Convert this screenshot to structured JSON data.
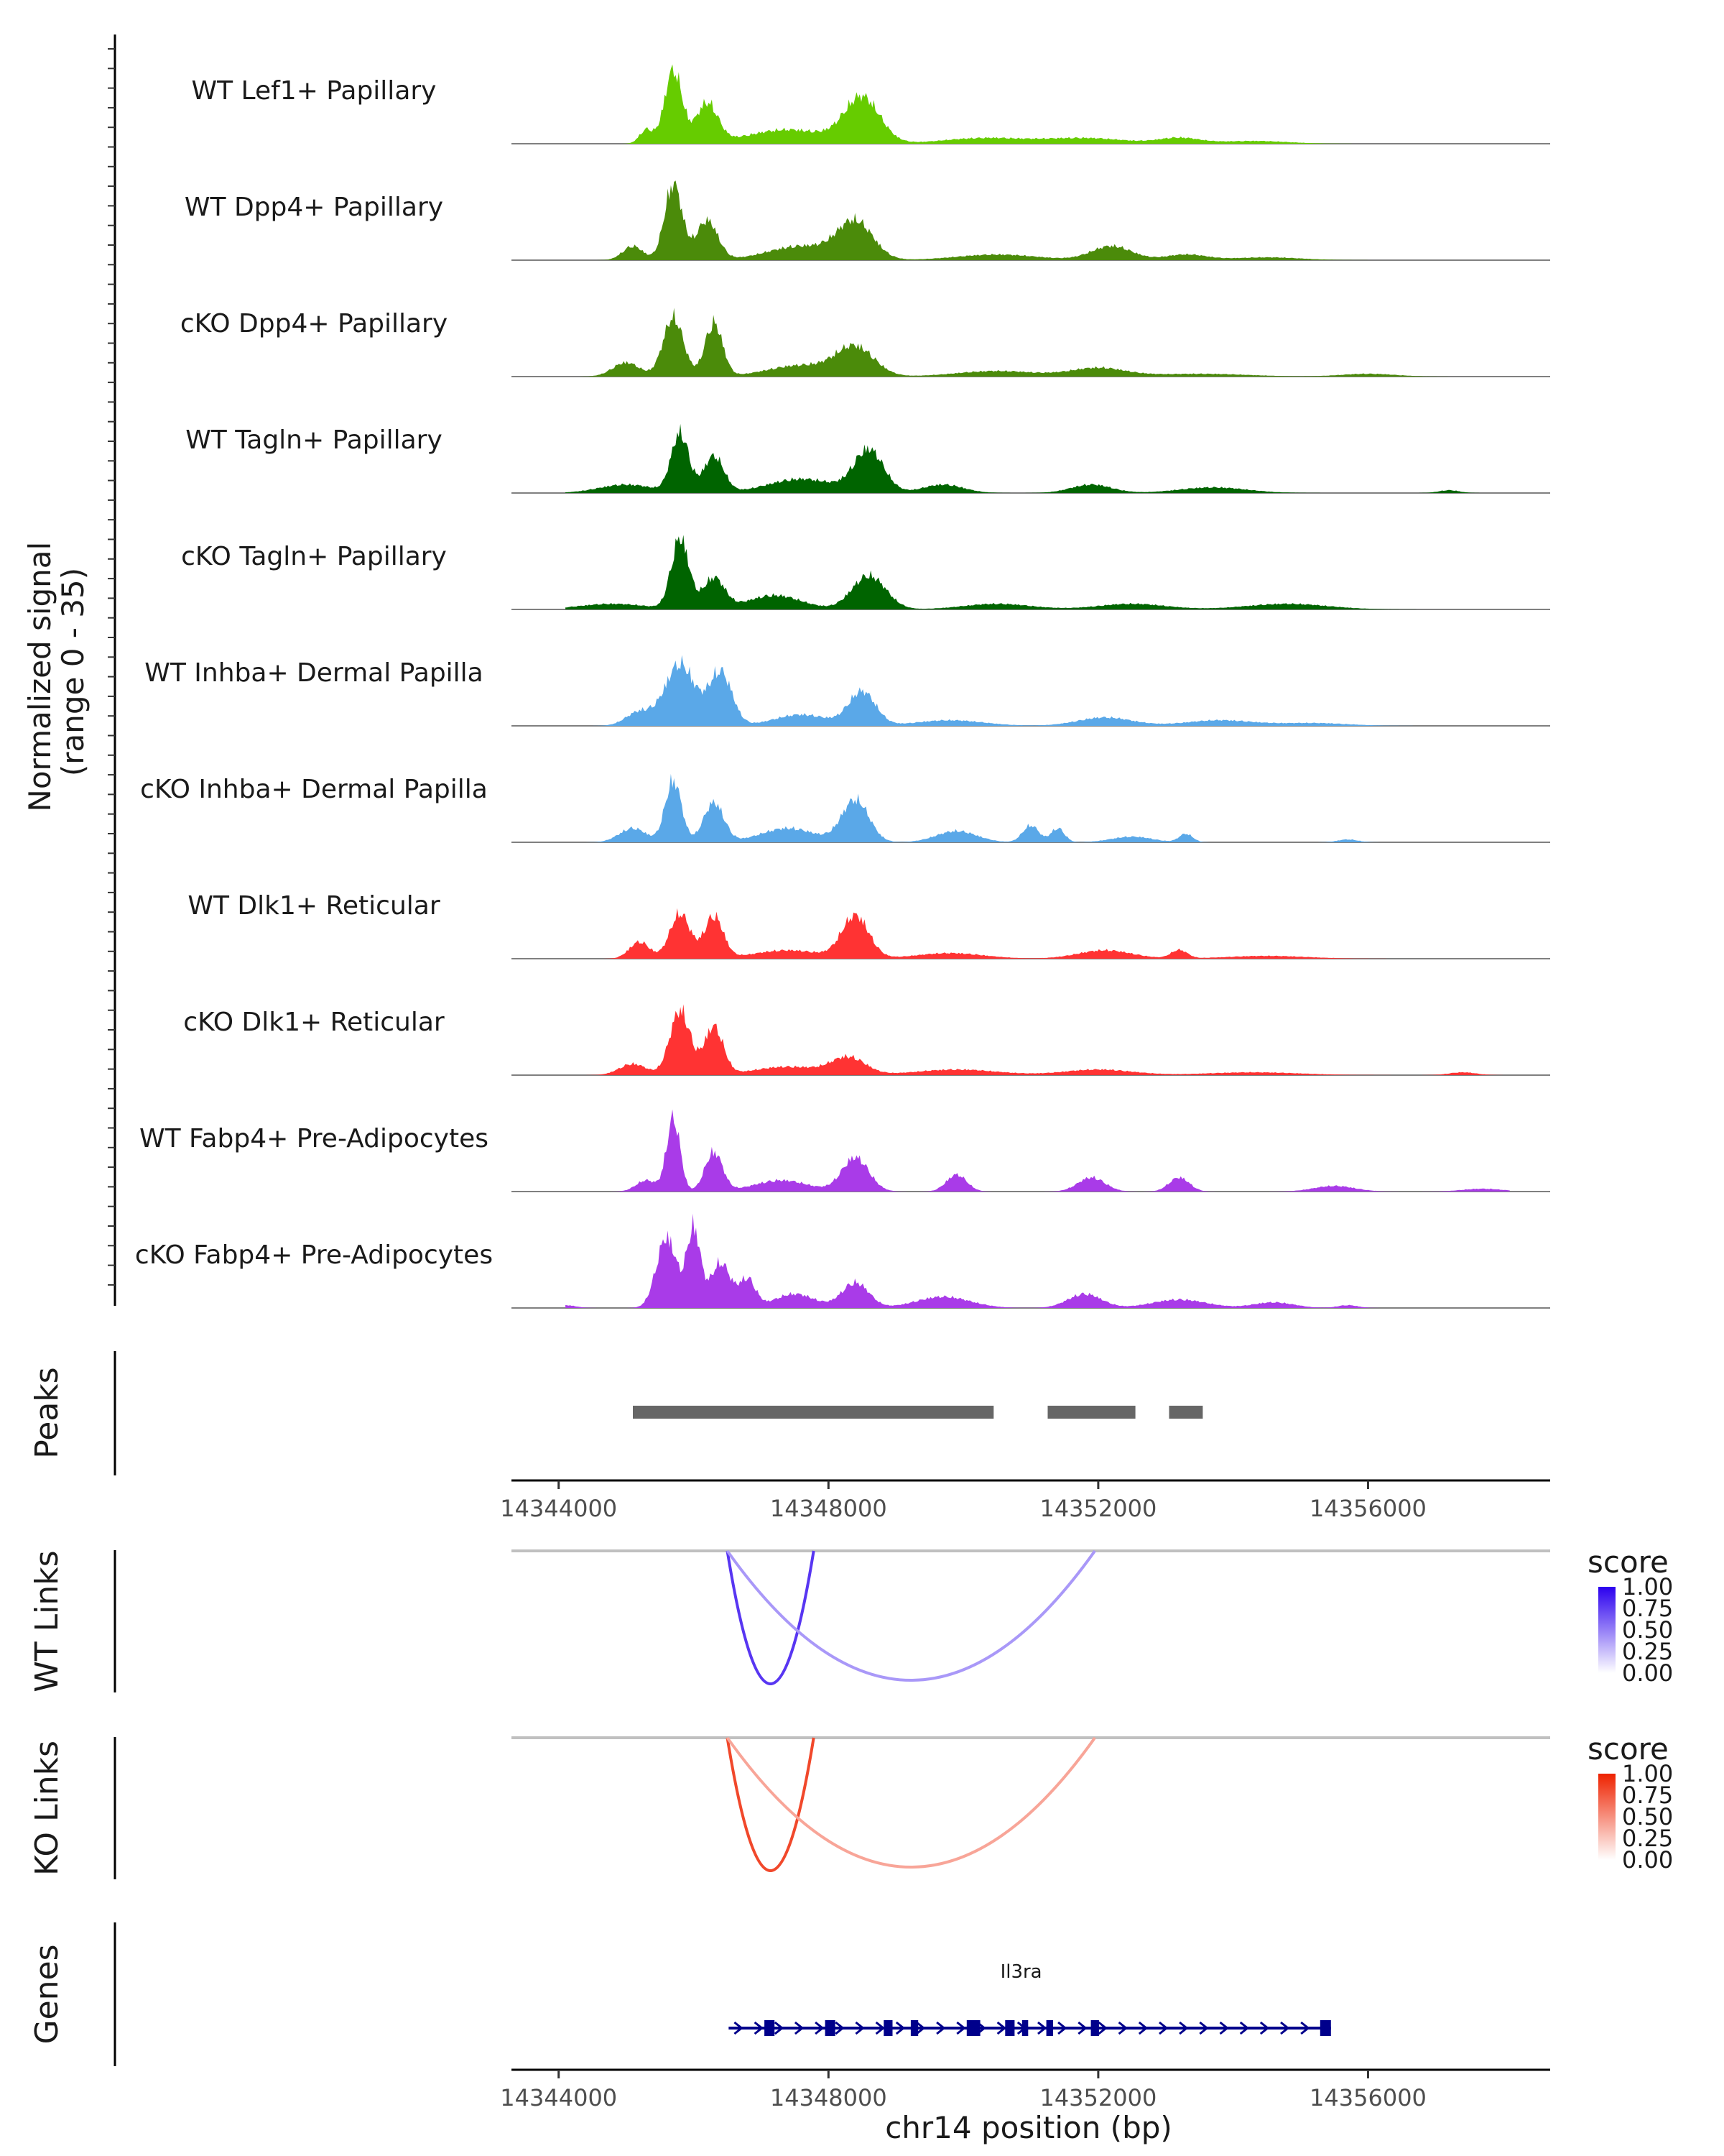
{
  "chart_data": {
    "type": "area",
    "title": "",
    "region": {
      "chrom": "chr14",
      "start": 14343300,
      "end": 14358700
    },
    "coverage": {
      "ylabel_line1": "Normalized signal",
      "ylabel_line2": "(range 0 - 35)",
      "ylim": [
        0,
        35
      ],
      "tracks": [
        {
          "name": "WT Lef1+ Papillary",
          "color": "#66cc00",
          "peaks": [
            [
              14345700,
              26,
              130
            ],
            [
              14346200,
              14,
              160
            ],
            [
              14348500,
              16,
              260
            ],
            [
              14345300,
              5,
              100
            ],
            [
              14347400,
              5,
              600
            ],
            [
              14350300,
              2,
              600
            ],
            [
              14351800,
              2,
              600
            ],
            [
              14353200,
              2,
              300
            ],
            [
              14354300,
              1,
              500
            ]
          ]
        },
        {
          "name": "WT Dpp4+ Papillary",
          "color": "#4b8b0a",
          "peaks": [
            [
              14345700,
              27,
              130
            ],
            [
              14346200,
              14,
              160
            ],
            [
              14348400,
              13,
              260
            ],
            [
              14345100,
              5,
              150
            ],
            [
              14347600,
              5,
              500
            ],
            [
              14350500,
              2,
              600
            ],
            [
              14352200,
              5,
              300
            ],
            [
              14353300,
              2,
              300
            ],
            [
              14354500,
              1,
              500
            ]
          ]
        },
        {
          "name": "cKO Dpp4+ Papillary",
          "color": "#4b8b0a",
          "peaks": [
            [
              14345700,
              21,
              150
            ],
            [
              14346300,
              19,
              130
            ],
            [
              14348400,
              10,
              280
            ],
            [
              14345000,
              5,
              200
            ],
            [
              14347600,
              4,
              500
            ],
            [
              14350500,
              2,
              600
            ],
            [
              14352000,
              3,
              400
            ],
            [
              14353500,
              1,
              700
            ],
            [
              14356000,
              1,
              400
            ]
          ]
        },
        {
          "name": "WT Tagln+ Papillary",
          "color": "#006400",
          "peaks": [
            [
              14345800,
              21,
              130
            ],
            [
              14346300,
              13,
              150
            ],
            [
              14348600,
              15,
              220
            ],
            [
              14347600,
              5,
              500
            ],
            [
              14345000,
              3,
              400
            ],
            [
              14349700,
              3,
              300
            ],
            [
              14351900,
              3,
              300
            ],
            [
              14353700,
              2,
              500
            ],
            [
              14357200,
              1,
              150
            ]
          ]
        },
        {
          "name": "cKO Tagln+ Papillary",
          "color": "#006400",
          "peaks": [
            [
              14345800,
              25,
              130
            ],
            [
              14346300,
              11,
              160
            ],
            [
              14348600,
              12,
              250
            ],
            [
              14347200,
              5,
              400
            ],
            [
              14344800,
              2,
              500
            ],
            [
              14350500,
              2,
              500
            ],
            [
              14352500,
              2,
              500
            ],
            [
              14354800,
              2,
              600
            ]
          ]
        },
        {
          "name": "WT Inhba+ Dermal Papilla",
          "color": "#5aa8e8",
          "peaks": [
            [
              14345800,
              22,
              220
            ],
            [
              14346400,
              19,
              170
            ],
            [
              14348500,
              12,
              200
            ],
            [
              14347600,
              4,
              400
            ],
            [
              14345200,
              5,
              200
            ],
            [
              14349800,
              2,
              500
            ],
            [
              14352100,
              3,
              400
            ],
            [
              14353800,
              2,
              500
            ],
            [
              14355200,
              1,
              500
            ]
          ]
        },
        {
          "name": "cKO Inhba+ Dermal Papilla",
          "color": "#5aa8e8",
          "peaks": [
            [
              14345700,
              22,
              120
            ],
            [
              14346300,
              14,
              150
            ],
            [
              14348400,
              15,
              200
            ],
            [
              14347400,
              5,
              400
            ],
            [
              14345100,
              5,
              200
            ],
            [
              14349900,
              4,
              300
            ],
            [
              14351000,
              6,
              120
            ],
            [
              14351400,
              5,
              100
            ],
            [
              14352500,
              2,
              300
            ],
            [
              14353300,
              3,
              100
            ],
            [
              14355700,
              1,
              150
            ]
          ]
        },
        {
          "name": "WT Dlk1+ Reticular",
          "color": "#ff3333",
          "peaks": [
            [
              14345800,
              16,
              150
            ],
            [
              14346300,
              15,
              140
            ],
            [
              14348400,
              15,
              200
            ],
            [
              14345200,
              6,
              150
            ],
            [
              14347400,
              3,
              500
            ],
            [
              14349800,
              2,
              500
            ],
            [
              14352100,
              3,
              400
            ],
            [
              14353200,
              3,
              120
            ],
            [
              14354500,
              1,
              600
            ]
          ]
        },
        {
          "name": "cKO Dlk1+ Reticular",
          "color": "#ff3333",
          "peaks": [
            [
              14345800,
              23,
              150
            ],
            [
              14346300,
              17,
              140
            ],
            [
              14348300,
              6,
              250
            ],
            [
              14347400,
              3,
              500
            ],
            [
              14345100,
              4,
              200
            ],
            [
              14349900,
              2,
              600
            ],
            [
              14352000,
              2,
              500
            ],
            [
              14354300,
              1,
              700
            ],
            [
              14357400,
              1,
              200
            ]
          ]
        },
        {
          "name": "WT Fabp4+ Pre-Adipocytes",
          "color": "#a93be8",
          "peaks": [
            [
              14345700,
              26,
              100
            ],
            [
              14346300,
              14,
              130
            ],
            [
              14348400,
              12,
              200
            ],
            [
              14345300,
              4,
              150
            ],
            [
              14347300,
              4,
              400
            ],
            [
              14349900,
              6,
              150
            ],
            [
              14351900,
              5,
              200
            ],
            [
              14353200,
              5,
              150
            ],
            [
              14355500,
              2,
              300
            ],
            [
              14357700,
              1,
              300
            ]
          ]
        },
        {
          "name": "cKO Fabp4+ Pre-Adipocytes",
          "color": "#a93be8",
          "peaks": [
            [
              14345600,
              25,
              150
            ],
            [
              14346000,
              28,
              100
            ],
            [
              14346400,
              16,
              150
            ],
            [
              14346800,
              10,
              120
            ],
            [
              14348400,
              9,
              200
            ],
            [
              14347500,
              5,
              300
            ],
            [
              14349700,
              4,
              400
            ],
            [
              14351800,
              5,
              250
            ],
            [
              14353200,
              3,
              400
            ],
            [
              14354600,
              2,
              300
            ],
            [
              14355700,
              1,
              150
            ],
            [
              14344100,
              1,
              150
            ]
          ]
        }
      ]
    },
    "peaks_track": {
      "label": "Peaks",
      "regions": [
        [
          14345100,
          14350450
        ],
        [
          14351250,
          14352550
        ],
        [
          14353050,
          14353550
        ]
      ]
    },
    "x_axis": {
      "ticks": [
        14344000,
        14348000,
        14352000,
        14356000
      ],
      "tick_labels": [
        "14344000",
        "14348000",
        "14352000",
        "14356000"
      ],
      "xlabel": "chr14 position (bp)"
    },
    "links": [
      {
        "label": "WT Links",
        "colorscale": [
          "#ffffff",
          "#2b00ee"
        ],
        "legend_title": "score",
        "legend_ticks": [
          "1.00",
          "0.75",
          "0.50",
          "0.25",
          "0.00"
        ],
        "arcs": [
          {
            "start": 14346500,
            "end": 14347780,
            "score": 0.75
          },
          {
            "start": 14346500,
            "end": 14351950,
            "score": 0.3
          }
        ]
      },
      {
        "label": "KO Links",
        "colorscale": [
          "#ffffff",
          "#ee2200"
        ],
        "legend_title": "score",
        "legend_ticks": [
          "1.00",
          "0.75",
          "0.50",
          "0.25",
          "0.00"
        ],
        "arcs": [
          {
            "start": 14346500,
            "end": 14347780,
            "score": 0.8
          },
          {
            "start": 14346500,
            "end": 14351950,
            "score": 0.3
          }
        ]
      }
    ],
    "genes": {
      "label": "Genes",
      "items": [
        {
          "name": "Il3ra",
          "start": 14346520,
          "end": 14355450,
          "strand": "+",
          "color": "#00008b",
          "exons": [
            [
              14347050,
              14347200
            ],
            [
              14347950,
              14348100
            ],
            [
              14348820,
              14348950
            ],
            [
              14349220,
              14349330
            ],
            [
              14350050,
              14350250
            ],
            [
              14350620,
              14350760
            ],
            [
              14350870,
              14350960
            ],
            [
              14351230,
              14351330
            ],
            [
              14351890,
              14352010
            ],
            [
              14355290,
              14355450
            ]
          ]
        }
      ]
    }
  }
}
